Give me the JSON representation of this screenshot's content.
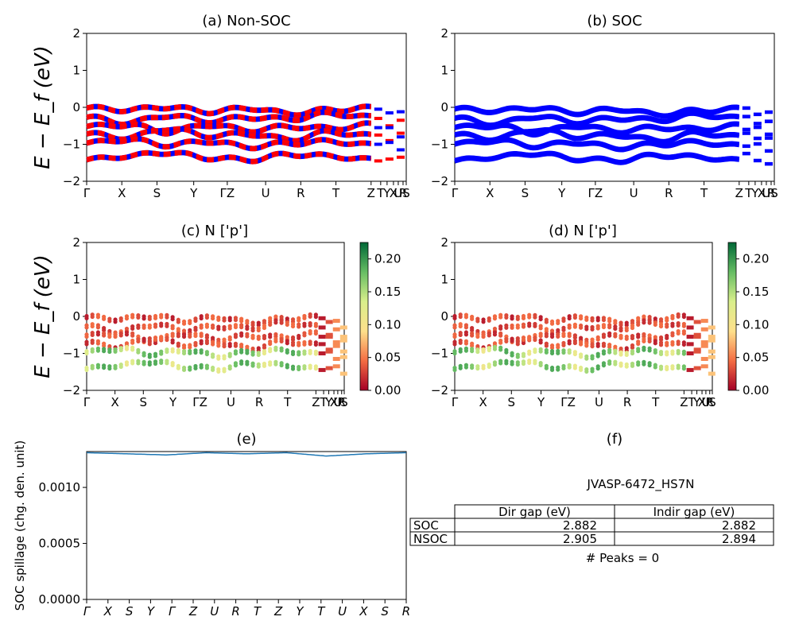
{
  "colors": {
    "nonsoc_a": "#ff0000",
    "nonsoc_b": "#0000ff",
    "soc": "#0000ff",
    "spillage": "#1f77b4"
  },
  "colormap": {
    "name": "RdYlGn",
    "stops": [
      "#a50026",
      "#f46d43",
      "#fee08b",
      "#d9ef8b",
      "#66bd63",
      "#006837"
    ]
  },
  "kpath": {
    "labels": [
      "Γ",
      "X",
      "S",
      "Y",
      "ΓZ",
      "U",
      "R",
      "T",
      "ZT|Y|X|U|S|R"
    ],
    "labels_ab": [
      "Γ",
      "X",
      "S",
      "Y",
      "ΓZ",
      "U",
      "R",
      "T",
      "Z",
      "T",
      "Y",
      "X",
      "U",
      "R",
      "S"
    ],
    "labels_cd": [
      "Γ",
      "X",
      "S",
      "Y",
      "ΓZ",
      "U",
      "R",
      "T",
      "Z",
      "T",
      "Y",
      "X",
      "U",
      "R",
      "S"
    ],
    "labels_e": [
      "Γ",
      "X",
      "S",
      "Y",
      "Γ",
      "Z",
      "U",
      "R",
      "T",
      "Z",
      "Y",
      "T",
      "U",
      "X",
      "S",
      "R"
    ]
  },
  "chart_data": [
    {
      "id": "a",
      "type": "line",
      "title": "(a) Non-SOC",
      "ylabel": "E − E_f (eV)",
      "ylim": [
        -2,
        2
      ],
      "yticks": [
        "2",
        "1",
        "0",
        "−1",
        "−2"
      ],
      "x_ticks": [
        "Γ",
        "X",
        "S",
        "Y",
        "ΓZ",
        "U",
        "R",
        "T",
        "ZT|Y|X|U|S|R"
      ],
      "series": [
        {
          "values": [
            -0.05,
            -0.1,
            -0.02,
            -0.15,
            -0.05,
            -0.2,
            -0.1,
            -0.05
          ]
        },
        {
          "values": [
            -0.3,
            -0.45,
            -0.25,
            -0.4,
            -0.3,
            -0.35,
            -0.2,
            -0.3
          ]
        },
        {
          "values": [
            -0.55,
            -0.5,
            -0.7,
            -0.5,
            -0.65,
            -0.55,
            -0.6,
            -0.5
          ]
        },
        {
          "values": [
            -0.75,
            -0.85,
            -0.6,
            -0.8,
            -0.75,
            -0.9,
            -0.7,
            -0.8
          ]
        },
        {
          "values": [
            -1.0,
            -0.9,
            -1.05,
            -0.95,
            -1.1,
            -1.0,
            -0.95,
            -1.05
          ]
        },
        {
          "values": [
            -1.45,
            -1.35,
            -1.25,
            -1.4,
            -1.45,
            -1.3,
            -1.35,
            -1.45
          ]
        }
      ]
    },
    {
      "id": "b",
      "type": "line",
      "title": "(b) SOC",
      "ylim": [
        -2,
        2
      ],
      "yticks": [
        "2",
        "1",
        "0",
        "−1",
        "−2"
      ],
      "x_ticks": [
        "Γ",
        "X",
        "S",
        "Y",
        "ΓZ",
        "U",
        "R",
        "T",
        "ZT|Y|X|U|S|R"
      ]
    },
    {
      "id": "c",
      "type": "scatter",
      "title": "(c)  N ['p']",
      "ylabel": "E − E_f (eV)",
      "ylim": [
        -2,
        2
      ],
      "yticks": [
        "2",
        "1",
        "0",
        "−1",
        "−2"
      ],
      "x_ticks": [
        "Γ",
        "X",
        "S",
        "Y",
        "ΓZ",
        "U",
        "R",
        "T",
        "ZT|Y|X|U|S|R"
      ],
      "colorbar": {
        "min": 0.0,
        "max": 0.225,
        "ticks": [
          "0.20",
          "0.15",
          "0.10",
          "0.05",
          "0.00"
        ]
      }
    },
    {
      "id": "d",
      "type": "scatter",
      "title": "(d) N ['p']",
      "ylim": [
        -2,
        2
      ],
      "yticks": [
        "2",
        "1",
        "0",
        "−1",
        "−2"
      ],
      "x_ticks": [
        "Γ",
        "X",
        "S",
        "Y",
        "ΓZ",
        "U",
        "R",
        "T",
        "ZT|Y|X|U|S|R"
      ],
      "colorbar": {
        "min": 0.0,
        "max": 0.225,
        "ticks": [
          "0.20",
          "0.15",
          "0.10",
          "0.05",
          "0.00"
        ]
      }
    },
    {
      "id": "e",
      "type": "line",
      "title": "(e)",
      "ylabel": "SOC spillage (chg. den. unit)",
      "ylim": [
        0,
        0.00132
      ],
      "yticks": [
        "0.0010",
        "0.0005",
        "0.0000"
      ],
      "x_ticks": [
        "Γ",
        "X",
        "S",
        "Y",
        "Γ",
        "Z",
        "U",
        "R",
        "T",
        "Z",
        "Y",
        "T",
        "U",
        "X",
        "S",
        "R"
      ],
      "values": [
        0.00131,
        0.0013,
        0.00129,
        0.00131,
        0.0013,
        0.00131,
        0.00128,
        0.0013,
        0.00131
      ]
    },
    {
      "id": "f",
      "type": "table",
      "title": "(f)",
      "subtitle": "JVASP-6472_HS7N",
      "columns": [
        "Dir gap (eV)",
        "Indir gap (eV)"
      ],
      "rows": [
        {
          "label": "SOC",
          "values": [
            "2.882",
            "2.882"
          ]
        },
        {
          "label": "NSOC",
          "values": [
            "2.905",
            "2.894"
          ]
        }
      ],
      "note": "# Peaks = 0"
    }
  ]
}
